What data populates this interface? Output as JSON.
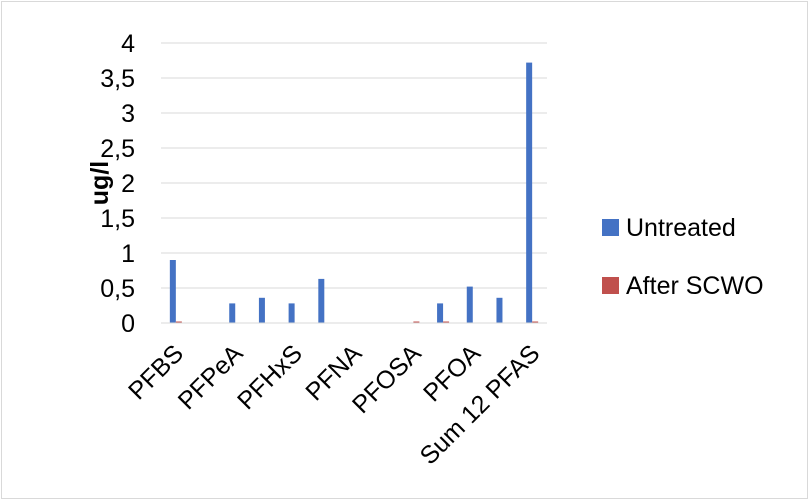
{
  "chart_data": {
    "type": "bar",
    "title": "",
    "xlabel": "",
    "ylabel": "ug/l",
    "ylim": [
      0,
      4
    ],
    "yticks": [
      "0",
      "0,5",
      "1",
      "1,5",
      "2",
      "2,5",
      "3",
      "3,5",
      "4"
    ],
    "ytick_values": [
      0,
      0.5,
      1,
      1.5,
      2,
      2.5,
      3,
      3.5,
      4
    ],
    "grid": true,
    "legend_position": "right",
    "categories": [
      "PFBS",
      "",
      "PFPeA",
      "",
      "PFHxS",
      "",
      "PFNA",
      "",
      "PFOSA",
      "",
      "PFOA",
      "",
      "Sum 12 PFAS"
    ],
    "series": [
      {
        "name": "Untreated",
        "color": "#4472c4",
        "values": [
          0.9,
          0,
          0.28,
          0.36,
          0.28,
          0.63,
          0,
          0,
          0,
          0.28,
          0.52,
          0.36,
          3.72
        ]
      },
      {
        "name": "After SCWO",
        "color": "#c0504d",
        "values": [
          0.01,
          0,
          0,
          0,
          0,
          0,
          0,
          0,
          0.01,
          0.01,
          0,
          0,
          0.01
        ]
      }
    ]
  }
}
